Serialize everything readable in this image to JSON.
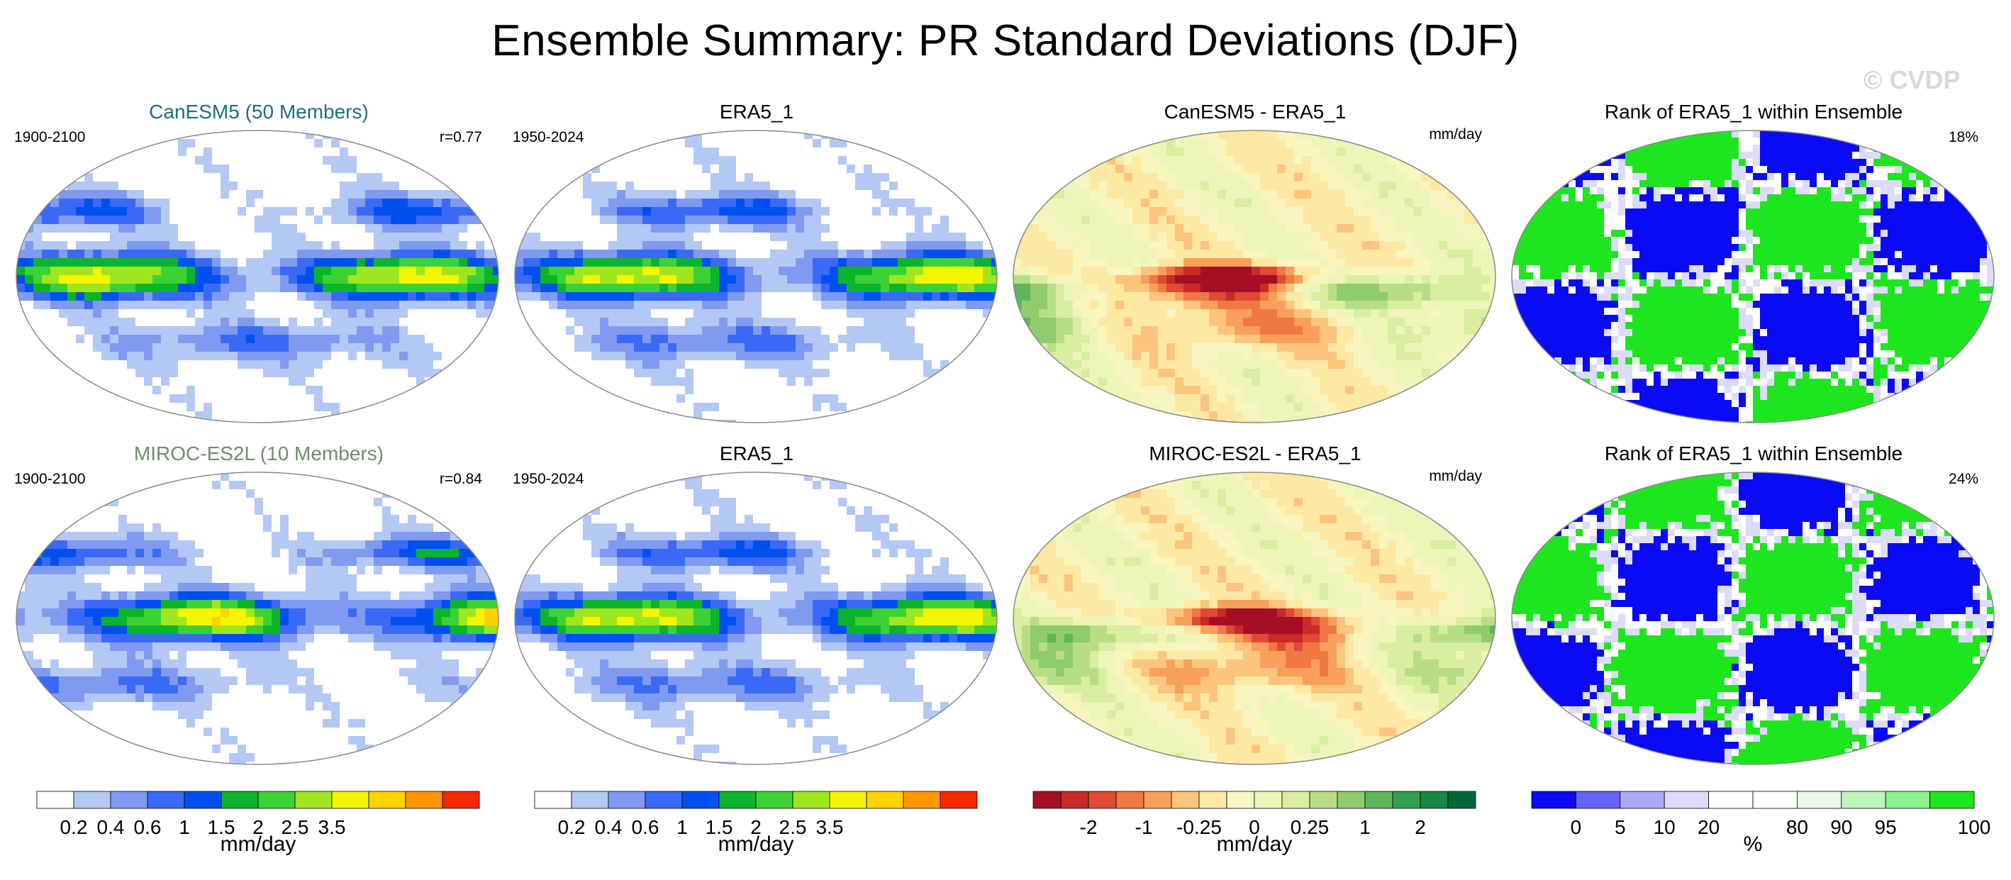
{
  "title": "Ensemble Summary: PR Standard Deviations (DJF)",
  "watermark": "© CVDP",
  "rows": [
    {
      "panels": [
        {
          "title": "CanESM5 (50 Members)",
          "title_color": "#1f6d80",
          "left": "1900-2100",
          "right": "r=0.77",
          "kind": "std",
          "seed": 11
        },
        {
          "title": "ERA5_1",
          "title_color": "#000000",
          "left": "1950-2024",
          "right": "",
          "kind": "std",
          "seed": 23
        },
        {
          "title": "CanESM5 - ERA5_1",
          "title_color": "#000000",
          "left": "",
          "right": "mm/day",
          "kind": "diff",
          "seed": 37
        },
        {
          "title": "Rank of ERA5_1 within Ensemble",
          "title_color": "#000000",
          "left": "",
          "right": "18%",
          "kind": "rank",
          "seed": 41
        }
      ]
    },
    {
      "panels": [
        {
          "title": "MIROC-ES2L (10 Members)",
          "title_color": "#6f8f6a",
          "left": "1900-2100",
          "right": "r=0.84",
          "kind": "std",
          "seed": 53
        },
        {
          "title": "ERA5_1",
          "title_color": "#000000",
          "left": "1950-2024",
          "right": "",
          "kind": "std",
          "seed": 23
        },
        {
          "title": "MIROC-ES2L - ERA5_1",
          "title_color": "#000000",
          "left": "",
          "right": "mm/day",
          "kind": "diff",
          "seed": 67
        },
        {
          "title": "Rank of ERA5_1 within Ensemble",
          "title_color": "#000000",
          "left": "",
          "right": "24%",
          "kind": "rank",
          "seed": 79
        }
      ]
    }
  ],
  "colorbars": [
    {
      "name": "std-colorbar-1",
      "colors": [
        "#ffffff",
        "#b4c8f5",
        "#7f9af0",
        "#3a6af5",
        "#0050f0",
        "#0cb42c",
        "#3cd236",
        "#a0e61e",
        "#f5f500",
        "#ffd200",
        "#ff9600",
        "#f52800"
      ],
      "ticks": [
        "0.2",
        "0.4",
        "0.6",
        "1",
        "1.5",
        "2",
        "2.5",
        "3.5"
      ],
      "tick_after_box": [
        0,
        1,
        2,
        3,
        4,
        5,
        6,
        7
      ],
      "units": "mm/day"
    },
    {
      "name": "std-colorbar-2",
      "colors": [
        "#ffffff",
        "#b4c8f5",
        "#7f9af0",
        "#3a6af5",
        "#0050f0",
        "#0cb42c",
        "#3cd236",
        "#a0e61e",
        "#f5f500",
        "#ffd200",
        "#ff9600",
        "#f52800"
      ],
      "ticks": [
        "0.2",
        "0.4",
        "0.6",
        "1",
        "1.5",
        "2",
        "2.5",
        "3.5"
      ],
      "tick_after_box": [
        0,
        1,
        2,
        3,
        4,
        5,
        6,
        7
      ],
      "units": "mm/day"
    },
    {
      "name": "diff-colorbar",
      "colors": [
        "#a50f26",
        "#c82a2a",
        "#de4a32",
        "#f07843",
        "#f8a05a",
        "#fcc47c",
        "#fde8a4",
        "#f8f6be",
        "#eef5b8",
        "#d9eea0",
        "#b8de85",
        "#90cb6c",
        "#5fb55c",
        "#33a050",
        "#178743",
        "#006837"
      ],
      "ticks": [
        "-2",
        "-1",
        "-0.25",
        "0",
        "0.25",
        "1",
        "2"
      ],
      "tick_after_box": [
        1,
        3,
        5,
        7,
        9,
        11,
        13
      ],
      "units": "mm/day"
    },
    {
      "name": "rank-colorbar",
      "colors": [
        "#0a0af5",
        "#6464f5",
        "#aaaaf5",
        "#dcdcfa",
        "#ffffff",
        "#ffffff",
        "#e6fae6",
        "#bef5be",
        "#8cf08c",
        "#1ee61e"
      ],
      "ticks": [
        "0",
        "5",
        "10",
        "20",
        "80",
        "90",
        "95",
        "100"
      ],
      "tick_after_box": [
        0,
        1,
        2,
        3,
        5,
        6,
        7,
        9
      ],
      "units": "%"
    }
  ]
}
